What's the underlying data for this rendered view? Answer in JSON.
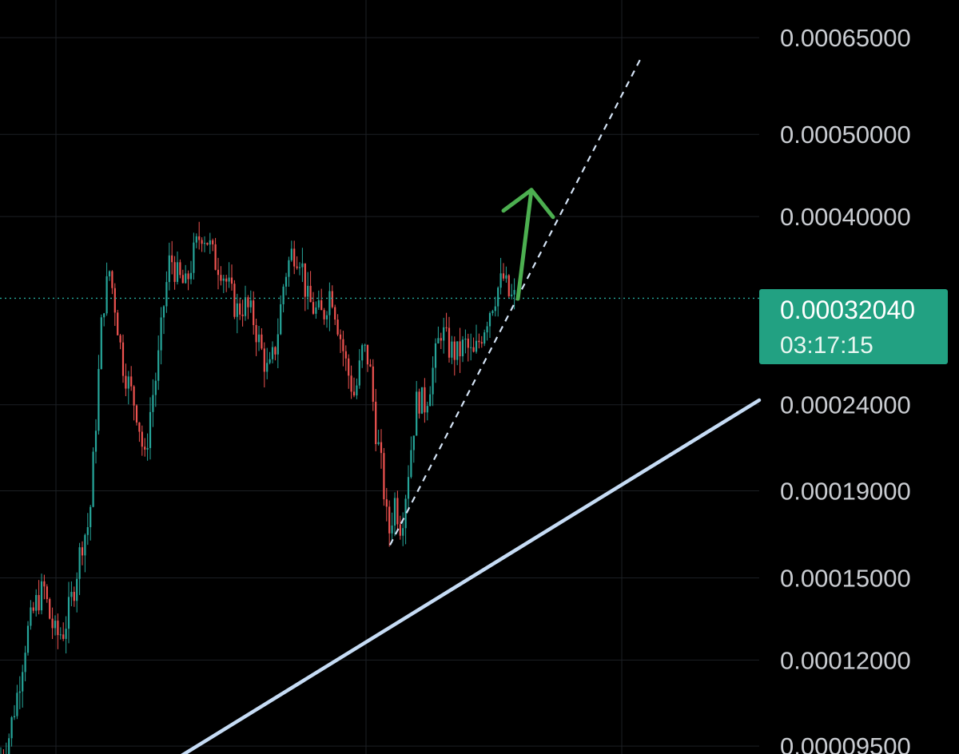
{
  "colors": {
    "background": "#000000",
    "grid": "#1c1f24",
    "up": "#26a69a",
    "down": "#ef5350",
    "axis_text": "#c9ccd1",
    "current_price_tag": "#22a182",
    "trendline": "#c6dcf5",
    "dashed_trendline": "#d4e3f5",
    "arrow": "#4caf50"
  },
  "chart_data": {
    "type": "candlestick",
    "y_scale": "log",
    "ylim": [
      9.3e-05,
      0.00072
    ],
    "price_axis_labels": [
      "0.00065000",
      "0.00050000",
      "0.00040000",
      "0.00024000",
      "0.00019000",
      "0.00015000",
      "0.00012000",
      "0.00009500"
    ],
    "current_price": "0.00032040",
    "current_price_value": 0.0003204,
    "countdown": "03:17:15",
    "price_path": [
      [
        0,
        9.2e-05
      ],
      [
        10,
        9.65e-05
      ],
      [
        22,
        0.00011
      ],
      [
        33,
        0.000128
      ],
      [
        45,
        0.00014
      ],
      [
        55,
        0.000146
      ],
      [
        62,
        0.000135
      ],
      [
        70,
        0.000128
      ],
      [
        80,
        0.00013
      ],
      [
        92,
        0.000145
      ],
      [
        102,
        0.000165
      ],
      [
        112,
        0.000175
      ],
      [
        120,
        0.00023
      ],
      [
        128,
        0.00031
      ],
      [
        137,
        0.000345
      ],
      [
        145,
        0.00031
      ],
      [
        153,
        0.00027
      ],
      [
        163,
        0.00025
      ],
      [
        172,
        0.000235
      ],
      [
        181,
        0.000205
      ],
      [
        189,
        0.00024
      ],
      [
        197,
        0.000265
      ],
      [
        205,
        0.000315
      ],
      [
        213,
        0.00036
      ],
      [
        222,
        0.00034
      ],
      [
        232,
        0.00033
      ],
      [
        242,
        0.00036
      ],
      [
        252,
        0.000385
      ],
      [
        260,
        0.000375
      ],
      [
        268,
        0.000355
      ],
      [
        276,
        0.00035
      ],
      [
        286,
        0.00033
      ],
      [
        296,
        0.00031
      ],
      [
        306,
        0.000315
      ],
      [
        316,
        0.000305
      ],
      [
        326,
        0.00028
      ],
      [
        336,
        0.00026
      ],
      [
        346,
        0.000285
      ],
      [
        356,
        0.00034
      ],
      [
        366,
        0.000365
      ],
      [
        376,
        0.00036
      ],
      [
        384,
        0.00032
      ],
      [
        394,
        0.00031
      ],
      [
        404,
        0.000305
      ],
      [
        414,
        0.00033
      ],
      [
        424,
        0.000295
      ],
      [
        434,
        0.000265
      ],
      [
        444,
        0.000245
      ],
      [
        454,
        0.00028
      ],
      [
        462,
        0.00027
      ],
      [
        470,
        0.000225
      ],
      [
        478,
        0.0002
      ],
      [
        486,
        0.000168
      ],
      [
        494,
        0.000185
      ],
      [
        502,
        0.000172
      ],
      [
        512,
        0.000205
      ],
      [
        522,
        0.000245
      ],
      [
        532,
        0.00024
      ],
      [
        542,
        0.000265
      ],
      [
        552,
        0.000295
      ],
      [
        562,
        0.00028
      ],
      [
        572,
        0.000275
      ],
      [
        582,
        0.000283
      ],
      [
        592,
        0.000272
      ],
      [
        602,
        0.00029
      ],
      [
        612,
        0.00031
      ],
      [
        622,
        0.000328
      ],
      [
        630,
        0.000338
      ],
      [
        638,
        0.00032
      ],
      [
        645,
        0.0003204
      ]
    ],
    "trendline": {
      "from": [
        210,
        9.05e-05
      ],
      "to": [
        950,
        0.000243
      ]
    },
    "dashed_trendline": {
      "from": [
        488,
        0.000164
      ],
      "to": [
        802,
        0.000615
      ]
    },
    "arrow": {
      "from": [
        648,
        0.00032
      ],
      "to": [
        665,
        0.00043
      ]
    }
  }
}
